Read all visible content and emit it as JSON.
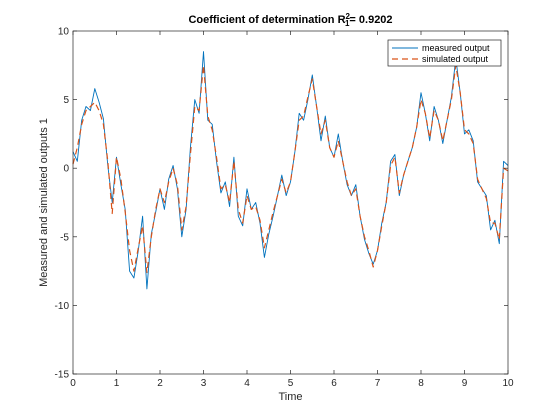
{
  "chart_data": {
    "type": "line",
    "title": {
      "prefix": "Coefficient of determination R",
      "superscript": "2",
      "subscript": "1",
      "suffix": "= 0.9202"
    },
    "xlabel": "Time",
    "ylabel": "Measured and simulated outputs 1",
    "xlim": [
      0,
      10
    ],
    "ylim": [
      -15,
      10
    ],
    "xticks": [
      0,
      1,
      2,
      3,
      4,
      5,
      6,
      7,
      8,
      9,
      10
    ],
    "yticks": [
      -15,
      -10,
      -5,
      0,
      5,
      10
    ],
    "grid": false,
    "legend_position": "top-right",
    "series": [
      {
        "name": "measured output",
        "color": "#0072BD",
        "style": "solid",
        "x": [
          0,
          0.1,
          0.2,
          0.3,
          0.4,
          0.5,
          0.6,
          0.7,
          0.8,
          0.9,
          1.0,
          1.1,
          1.2,
          1.3,
          1.4,
          1.5,
          1.6,
          1.7,
          1.8,
          1.9,
          2.0,
          2.1,
          2.2,
          2.3,
          2.4,
          2.5,
          2.6,
          2.7,
          2.8,
          2.9,
          3.0,
          3.1,
          3.2,
          3.3,
          3.4,
          3.5,
          3.6,
          3.7,
          3.8,
          3.9,
          4.0,
          4.1,
          4.2,
          4.3,
          4.4,
          4.5,
          4.6,
          4.7,
          4.8,
          4.9,
          5.0,
          5.1,
          5.2,
          5.3,
          5.4,
          5.5,
          5.6,
          5.7,
          5.8,
          5.9,
          6.0,
          6.1,
          6.2,
          6.3,
          6.4,
          6.5,
          6.6,
          6.7,
          6.8,
          6.9,
          7.0,
          7.1,
          7.2,
          7.3,
          7.4,
          7.5,
          7.6,
          7.7,
          7.8,
          7.9,
          8.0,
          8.1,
          8.2,
          8.3,
          8.4,
          8.5,
          8.6,
          8.7,
          8.8,
          8.9,
          9.0,
          9.1,
          9.2,
          9.3,
          9.4,
          9.5,
          9.6,
          9.7,
          9.8,
          9.9,
          10.0
        ],
        "values": [
          1.2,
          0.5,
          3.5,
          4.5,
          4.2,
          5.8,
          4.8,
          3.6,
          0.2,
          -2.5,
          0.8,
          -1.2,
          -3.0,
          -7.5,
          -8.0,
          -6.0,
          -3.5,
          -8.8,
          -4.8,
          -3.2,
          -1.5,
          -3.0,
          -0.8,
          0.2,
          -1.5,
          -5.0,
          -3.0,
          1.5,
          5.0,
          4.0,
          8.5,
          3.5,
          3.2,
          0.5,
          -1.8,
          -1.0,
          -2.8,
          0.8,
          -3.5,
          -4.2,
          -1.5,
          -3.0,
          -2.5,
          -4.0,
          -6.5,
          -4.8,
          -3.5,
          -2.0,
          -0.5,
          -2.0,
          -1.0,
          1.2,
          4.0,
          3.5,
          5.0,
          6.8,
          4.5,
          2.0,
          3.8,
          1.5,
          0.8,
          2.5,
          0.5,
          -1.2,
          -2.0,
          -1.2,
          -3.5,
          -5.2,
          -6.2,
          -7.0,
          -6.0,
          -4.0,
          -2.5,
          0.5,
          1.0,
          -2.0,
          -0.5,
          0.5,
          1.5,
          3.0,
          5.5,
          4.0,
          2.0,
          4.5,
          3.5,
          1.8,
          3.5,
          5.2,
          8.0,
          5.5,
          2.5,
          2.8,
          2.0,
          -1.0,
          -1.5,
          -2.0,
          -4.5,
          -3.8,
          -5.5,
          0.5,
          0.2
        ]
      },
      {
        "name": "simulated output",
        "color": "#D95319",
        "style": "dashed",
        "x": [
          0,
          0.1,
          0.2,
          0.3,
          0.4,
          0.5,
          0.6,
          0.7,
          0.8,
          0.9,
          1.0,
          1.1,
          1.2,
          1.3,
          1.4,
          1.5,
          1.6,
          1.7,
          1.8,
          1.9,
          2.0,
          2.1,
          2.2,
          2.3,
          2.4,
          2.5,
          2.6,
          2.7,
          2.8,
          2.9,
          3.0,
          3.1,
          3.2,
          3.3,
          3.4,
          3.5,
          3.6,
          3.7,
          3.8,
          3.9,
          4.0,
          4.1,
          4.2,
          4.3,
          4.4,
          4.5,
          4.6,
          4.7,
          4.8,
          4.9,
          5.0,
          5.1,
          5.2,
          5.3,
          5.4,
          5.5,
          5.6,
          5.7,
          5.8,
          5.9,
          6.0,
          6.1,
          6.2,
          6.3,
          6.4,
          6.5,
          6.6,
          6.7,
          6.8,
          6.9,
          7.0,
          7.1,
          7.2,
          7.3,
          7.4,
          7.5,
          7.6,
          7.7,
          7.8,
          7.9,
          8.0,
          8.1,
          8.2,
          8.3,
          8.4,
          8.5,
          8.6,
          8.7,
          8.8,
          8.9,
          9.0,
          9.1,
          9.2,
          9.3,
          9.4,
          9.5,
          9.6,
          9.7,
          9.8,
          9.9,
          10.0
        ],
        "values": [
          0.3,
          1.5,
          3.2,
          4.2,
          4.5,
          4.8,
          4.2,
          3.2,
          0.5,
          -3.3,
          0.8,
          -0.8,
          -3.2,
          -6.0,
          -7.5,
          -5.8,
          -4.2,
          -7.6,
          -5.0,
          -3.0,
          -1.5,
          -2.5,
          -1.0,
          0.0,
          -1.2,
          -4.5,
          -2.8,
          1.0,
          4.5,
          4.2,
          7.5,
          3.8,
          2.8,
          0.8,
          -1.5,
          -1.2,
          -2.5,
          0.5,
          -3.0,
          -4.0,
          -2.0,
          -3.0,
          -2.8,
          -3.8,
          -5.8,
          -4.5,
          -3.2,
          -2.0,
          -0.8,
          -1.8,
          -1.0,
          1.2,
          3.5,
          3.8,
          5.2,
          6.5,
          4.5,
          2.5,
          3.5,
          1.5,
          0.8,
          2.0,
          0.5,
          -1.0,
          -2.0,
          -1.5,
          -3.5,
          -5.0,
          -6.0,
          -7.2,
          -6.0,
          -4.2,
          -2.5,
          0.2,
          0.8,
          -1.8,
          -0.5,
          0.5,
          1.5,
          3.0,
          5.0,
          4.0,
          2.2,
          4.2,
          3.5,
          2.0,
          3.5,
          5.0,
          7.5,
          5.5,
          2.8,
          2.5,
          1.8,
          -0.8,
          -1.5,
          -2.2,
          -4.0,
          -4.0,
          -5.2,
          0.0,
          -0.2
        ]
      }
    ]
  }
}
